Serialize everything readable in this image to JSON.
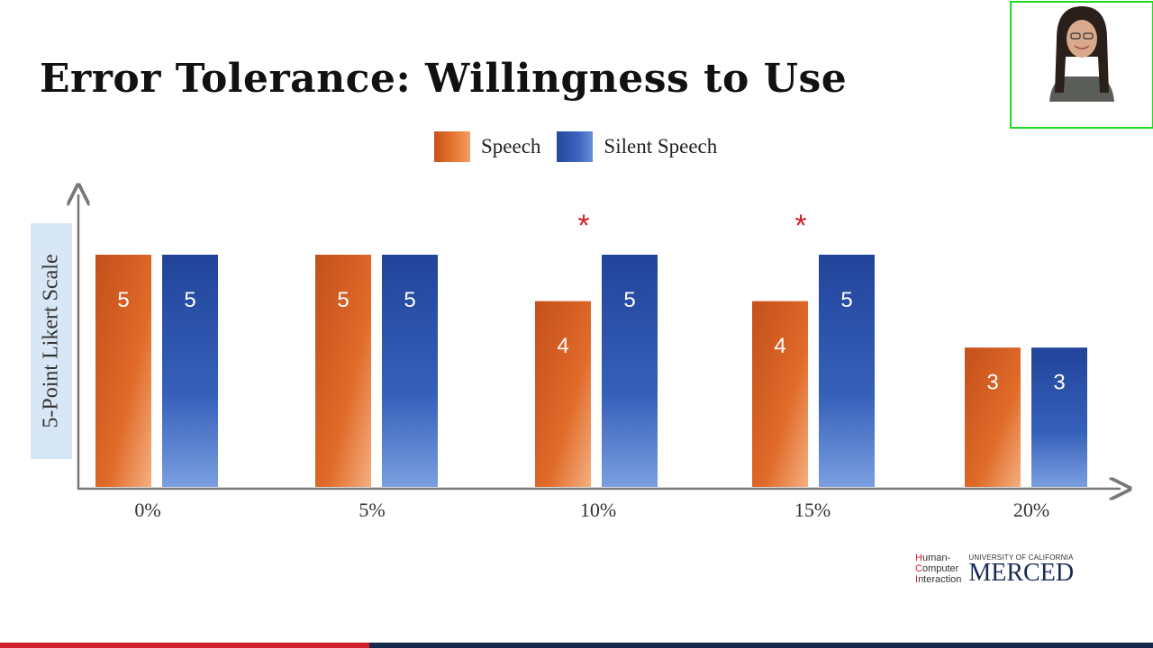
{
  "slide": {
    "title": "Error Tolerance: Willingness to Use"
  },
  "legend": {
    "speech": "Speech",
    "silent": "Silent Speech"
  },
  "chart_data": {
    "type": "bar",
    "title": "Error Tolerance: Willingness to Use",
    "ylabel": "5-Point Likert Scale",
    "xlabel": "",
    "categories": [
      "0%",
      "5%",
      "10%",
      "15%",
      "20%"
    ],
    "series": [
      {
        "name": "Speech",
        "values": [
          5,
          5,
          4,
          4,
          3
        ],
        "color": "#e06a28"
      },
      {
        "name": "Silent Speech",
        "values": [
          5,
          5,
          5,
          5,
          3
        ],
        "color": "#2f57b0"
      }
    ],
    "significance": [
      "",
      "",
      "*",
      "*",
      ""
    ],
    "significance_color": "#d0202a",
    "ylim": [
      0,
      5
    ],
    "grid": false,
    "legend_position": "top"
  },
  "logo": {
    "hci_h": "H",
    "hci_uman": "uman-",
    "hci_c": "C",
    "hci_omputer": "omputer",
    "hci_i": "I",
    "hci_nteraction": "nteraction",
    "uc": "UNIVERSITY OF CALIFORNIA",
    "merced": "MERCED"
  },
  "video": {
    "progress_fraction": 0.32
  }
}
